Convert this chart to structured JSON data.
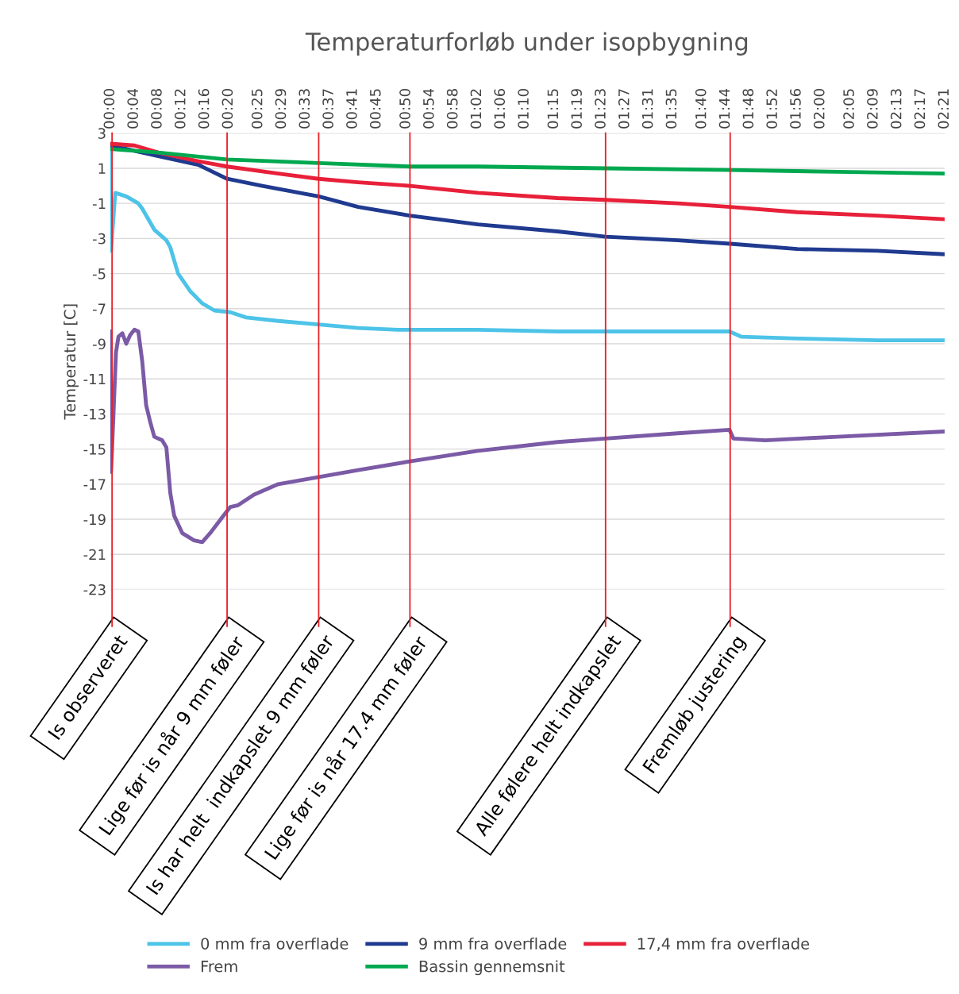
{
  "chart_data": {
    "type": "line",
    "title": "Temperaturforløb under isopbygning",
    "ylabel": "Temperatur [C]",
    "xlim": [
      0,
      2.35
    ],
    "xticks": [
      {
        "value": 0,
        "label": "00:00"
      },
      {
        "value": 0.0667,
        "label": "00:04"
      },
      {
        "value": 0.1333,
        "label": "00:08"
      },
      {
        "value": 0.2,
        "label": "00:12"
      },
      {
        "value": 0.2667,
        "label": "00:16"
      },
      {
        "value": 0.3333,
        "label": "00:20"
      },
      {
        "value": 0.4167,
        "label": "00:25"
      },
      {
        "value": 0.4833,
        "label": "00:29"
      },
      {
        "value": 0.55,
        "label": "00:33"
      },
      {
        "value": 0.6167,
        "label": "00:37"
      },
      {
        "value": 0.6833,
        "label": "00:41"
      },
      {
        "value": 0.75,
        "label": "00:45"
      },
      {
        "value": 0.8333,
        "label": "00:50"
      },
      {
        "value": 0.9,
        "label": "00:54"
      },
      {
        "value": 0.9667,
        "label": "00:58"
      },
      {
        "value": 1.0333,
        "label": "01:02"
      },
      {
        "value": 1.1,
        "label": "01:06"
      },
      {
        "value": 1.1667,
        "label": "01:10"
      },
      {
        "value": 1.25,
        "label": "01:15"
      },
      {
        "value": 1.3167,
        "label": "01:19"
      },
      {
        "value": 1.3833,
        "label": "01:23"
      },
      {
        "value": 1.45,
        "label": "01:27"
      },
      {
        "value": 1.5167,
        "label": "01:31"
      },
      {
        "value": 1.5833,
        "label": "01:35"
      },
      {
        "value": 1.6667,
        "label": "01:40"
      },
      {
        "value": 1.7333,
        "label": "01:44"
      },
      {
        "value": 1.8,
        "label": "01:48"
      },
      {
        "value": 1.8667,
        "label": "01:52"
      },
      {
        "value": 1.9333,
        "label": "01:56"
      },
      {
        "value": 2.0,
        "label": "02:00"
      },
      {
        "value": 2.0833,
        "label": "02:05"
      },
      {
        "value": 2.15,
        "label": "02:09"
      },
      {
        "value": 2.2167,
        "label": "02:13"
      },
      {
        "value": 2.2833,
        "label": "02:17"
      },
      {
        "value": 2.35,
        "label": "02:21"
      }
    ],
    "ylim": [
      -23,
      3
    ],
    "yticks": [
      -23,
      -21,
      -19,
      -17,
      -15,
      -13,
      -11,
      -9,
      -7,
      -5,
      -3,
      -1,
      1,
      3
    ],
    "grid": "y",
    "legend": "bottom",
    "marker": "none",
    "line_style": "solid",
    "series": [
      {
        "name": "0 mm fra overflade",
        "color": "#4dc3e8",
        "x": [
          0,
          0.002,
          0.014,
          0.045,
          0.079,
          0.09,
          0.124,
          0.158,
          0.169,
          0.191,
          0.225,
          0.259,
          0.293,
          0.338,
          0.383,
          0.473,
          0.585,
          0.698,
          0.81,
          1.035,
          1.26,
          1.485,
          1.71,
          1.744,
          1.778,
          1.935,
          2.16,
          2.35
        ],
        "values": [
          2.0,
          -3.7,
          -0.4,
          -0.6,
          -1.0,
          -1.3,
          -2.5,
          -3.1,
          -3.5,
          -5.0,
          -6.0,
          -6.7,
          -7.1,
          -7.2,
          -7.5,
          -7.7,
          -7.9,
          -8.1,
          -8.2,
          -8.2,
          -8.3,
          -8.3,
          -8.3,
          -8.3,
          -8.6,
          -8.7,
          -8.8,
          -8.8
        ]
      },
      {
        "name": "9 mm fra overflade",
        "color": "#1f3a8f",
        "x": [
          0,
          0.135,
          0.248,
          0.329,
          0.428,
          0.587,
          0.698,
          0.844,
          1.035,
          1.26,
          1.395,
          1.598,
          1.746,
          1.935,
          2.16,
          2.35
        ],
        "values": [
          2.3,
          1.7,
          1.2,
          0.4,
          0.0,
          -0.6,
          -1.2,
          -1.7,
          -2.2,
          -2.6,
          -2.9,
          -3.1,
          -3.3,
          -3.6,
          -3.7,
          -3.9
        ]
      },
      {
        "name": "17,4 mm fra overflade",
        "color": "#e8203a",
        "x": [
          0,
          0.068,
          0.135,
          0.248,
          0.329,
          0.473,
          0.587,
          0.698,
          0.844,
          1.035,
          1.26,
          1.395,
          1.598,
          1.746,
          1.935,
          2.16,
          2.35
        ],
        "values": [
          2.4,
          2.3,
          1.9,
          1.4,
          1.1,
          0.7,
          0.4,
          0.2,
          0.0,
          -0.4,
          -0.7,
          -0.8,
          -1.0,
          -1.2,
          -1.5,
          -1.7,
          -1.9
        ]
      },
      {
        "name": "Frem",
        "color": "#7b5aa6",
        "x": [
          0,
          0.002,
          0.005,
          0.016,
          0.023,
          0.034,
          0.045,
          0.056,
          0.068,
          0.079,
          0.09,
          0.101,
          0.113,
          0.124,
          0.146,
          0.158,
          0.169,
          0.18,
          0.203,
          0.236,
          0.259,
          0.281,
          0.315,
          0.338,
          0.36,
          0.405,
          0.473,
          0.587,
          0.698,
          0.844,
          1.035,
          1.26,
          1.395,
          1.598,
          1.744,
          1.755,
          1.845,
          2.048,
          2.35
        ],
        "values": [
          -8.3,
          -16.3,
          -15.0,
          -9.5,
          -8.6,
          -8.4,
          -9.0,
          -8.5,
          -8.2,
          -8.3,
          -10.0,
          -12.5,
          -13.5,
          -14.3,
          -14.5,
          -14.9,
          -17.5,
          -18.8,
          -19.8,
          -20.2,
          -20.3,
          -19.8,
          -18.9,
          -18.3,
          -18.2,
          -17.6,
          -17.0,
          -16.6,
          -16.2,
          -15.7,
          -15.1,
          -14.6,
          -14.4,
          -14.1,
          -13.9,
          -14.4,
          -14.5,
          -14.3,
          -14.0
        ]
      },
      {
        "name": "Bassin gennemsnit",
        "color": "#00a84f",
        "x": [
          0,
          0.135,
          0.329,
          0.587,
          0.844,
          1.035,
          1.395,
          1.746,
          2.048,
          2.35
        ],
        "values": [
          2.1,
          1.9,
          1.5,
          1.3,
          1.1,
          1.1,
          1.0,
          0.9,
          0.8,
          0.7
        ]
      }
    ],
    "ref_lines": [
      {
        "axis": "x",
        "value": 0.005,
        "label": "Is observeret",
        "color": "#e8202a"
      },
      {
        "axis": "x",
        "value": 0.329,
        "label": "Lige før is når 9 mm føler",
        "color": "#e8202a"
      },
      {
        "axis": "x",
        "value": 0.587,
        "label": "Is har helt  indkapslet 9 mm føler",
        "color": "#e8202a"
      },
      {
        "axis": "x",
        "value": 0.844,
        "label": "Lige før is når 17.4 mm føler",
        "color": "#e8202a"
      },
      {
        "axis": "x",
        "value": 1.395,
        "label": "Alle følere helt indkapslet",
        "color": "#e8202a"
      },
      {
        "axis": "x",
        "value": 1.746,
        "label": "Fremløb justering",
        "color": "#e8202a"
      }
    ]
  }
}
